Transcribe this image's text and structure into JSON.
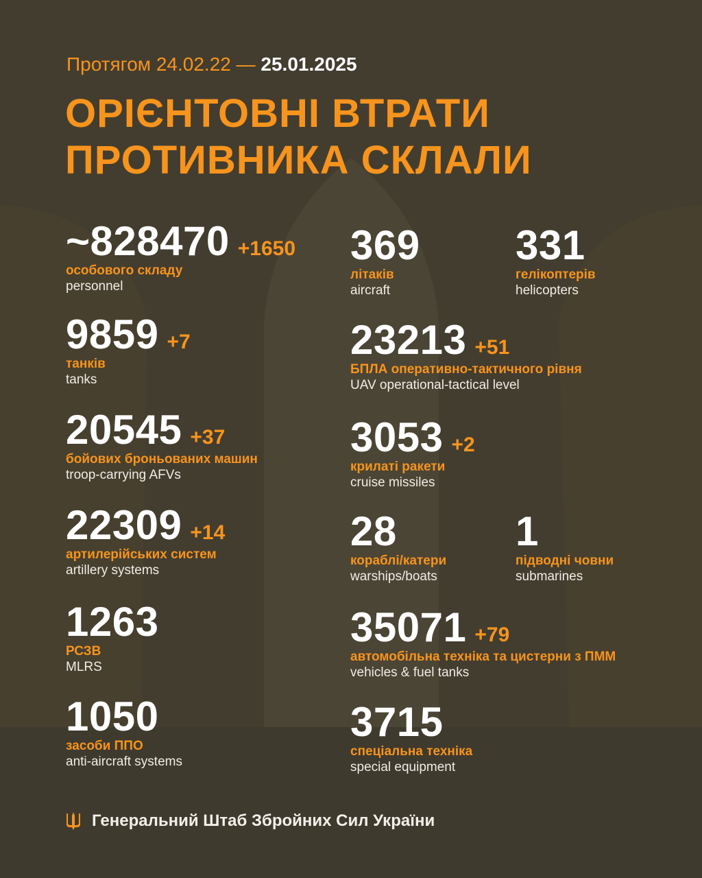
{
  "colors": {
    "background": "#433d30",
    "accent": "#f7941d",
    "text": "#ffffff"
  },
  "header": {
    "period_prefix": "Протягом 24.02.22 —",
    "period_date": "25.01.2025",
    "title_line1": "ОРІЄНТОВНІ ВТРАТИ",
    "title_line2": "ПРОТИВНИКА СКЛАЛИ"
  },
  "stats": {
    "personnel": {
      "value": "~828470",
      "delta": "+1650",
      "ua": "особового складу",
      "en": "personnel"
    },
    "tanks": {
      "value": "9859",
      "delta": "+7",
      "ua": "танків",
      "en": "tanks"
    },
    "afv": {
      "value": "20545",
      "delta": "+37",
      "ua": "бойових броньованих машин",
      "en": "troop-carrying AFVs"
    },
    "artillery": {
      "value": "22309",
      "delta": "+14",
      "ua": "артилерійських систем",
      "en": "artillery systems"
    },
    "mlrs": {
      "value": "1263",
      "ua": "РСЗВ",
      "en": "MLRS"
    },
    "air_defense": {
      "value": "1050",
      "ua": "засоби ППО",
      "en": "anti-aircraft systems"
    },
    "aircraft": {
      "value": "369",
      "ua": "літаків",
      "en": "aircraft"
    },
    "helicopters": {
      "value": "331",
      "ua": "гелікоптерів",
      "en": "helicopters"
    },
    "uav": {
      "value": "23213",
      "delta": "+51",
      "ua": "БПЛА оперативно-тактичного рівня",
      "en": "UAV operational-tactical level"
    },
    "cruise_missiles": {
      "value": "3053",
      "delta": "+2",
      "ua": "крилаті ракети",
      "en": "cruise missiles"
    },
    "warships": {
      "value": "28",
      "ua": "кораблі/катери",
      "en": "warships/boats"
    },
    "submarines": {
      "value": "1",
      "ua": "підводні човни",
      "en": "submarines"
    },
    "vehicles": {
      "value": "35071",
      "delta": "+79",
      "ua": "автомобільна техніка та цистерни з ПММ",
      "en": "vehicles & fuel tanks"
    },
    "special": {
      "value": "3715",
      "ua": "спеціальна техніка",
      "en": "special equipment"
    }
  },
  "footer": {
    "icon": "trident-icon",
    "text": "Генеральний Штаб Збройних Сил України"
  }
}
